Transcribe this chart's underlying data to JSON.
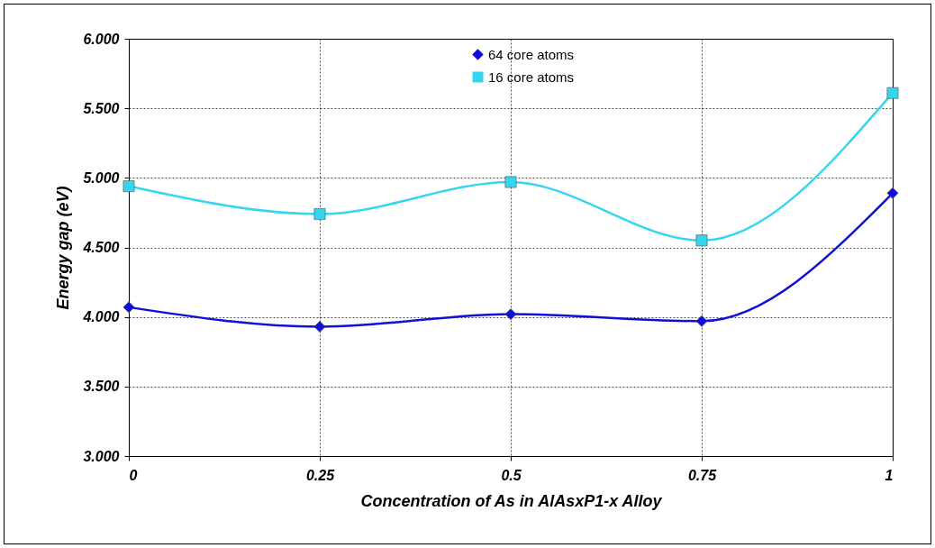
{
  "chart_data": {
    "type": "line",
    "xlabel": "Concentration of As in AlAsxP1-x Alloy",
    "ylabel": "Energy gap (eV)",
    "x": [
      0,
      0.25,
      0.5,
      0.75,
      1
    ],
    "series": [
      {
        "name": "64 core atoms",
        "color": "#0f0fd8",
        "marker": "diamond",
        "values": [
          4.07,
          3.93,
          4.02,
          3.97,
          4.89
        ]
      },
      {
        "name": "16 core atoms",
        "color": "#33d6ee",
        "marker": "square",
        "values": [
          4.94,
          4.74,
          4.97,
          4.55,
          5.61
        ]
      }
    ],
    "xlim": [
      0,
      1
    ],
    "xticks": [
      0,
      0.25,
      0.5,
      0.75,
      1
    ],
    "ylim": [
      3,
      6
    ],
    "yticks": [
      {
        "value": 3,
        "label": "3.000"
      },
      {
        "value": 3.5,
        "label": "3.500"
      },
      {
        "value": 4,
        "label": "4.000"
      },
      {
        "value": 4.5,
        "label": "4.500"
      },
      {
        "value": 5,
        "label": "5.000"
      },
      {
        "value": 5.5,
        "label": "5.500"
      },
      {
        "value": 6,
        "label": "6.000"
      }
    ],
    "grid": true,
    "legend": "top",
    "line_style": "solid"
  }
}
